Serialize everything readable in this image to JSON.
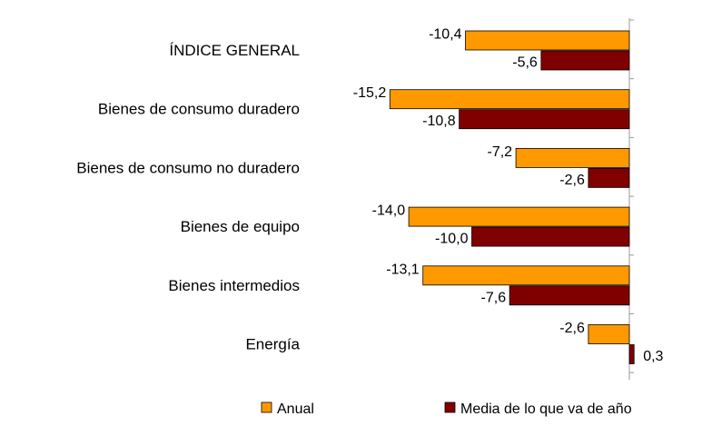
{
  "chart_data": {
    "type": "bar",
    "orientation": "horizontal",
    "categories": [
      "ÍNDICE GENERAL",
      "Bienes de consumo duradero",
      "Bienes de consumo no duradero",
      "Bienes de equipo",
      "Bienes intermedios",
      "Energía"
    ],
    "series": [
      {
        "name": "Anual",
        "color": "#ff9900",
        "values": [
          -10.4,
          -15.2,
          -7.2,
          -14.0,
          -13.1,
          -2.6
        ],
        "labels": [
          "-10,4",
          "-15,2",
          "-7,2",
          "-14,0",
          "-13,1",
          "-2,6"
        ]
      },
      {
        "name": "Media de lo que va de año",
        "color": "#800000",
        "values": [
          -5.6,
          -10.8,
          -2.6,
          -10.0,
          -7.6,
          0.3
        ],
        "labels": [
          "-5,6",
          "-10,8",
          "-2,6",
          "-10,0",
          "-7,6",
          "0,3"
        ]
      }
    ],
    "xlim": [
      -15.2,
      0.3
    ],
    "legend_position": "bottom",
    "grid": false
  }
}
